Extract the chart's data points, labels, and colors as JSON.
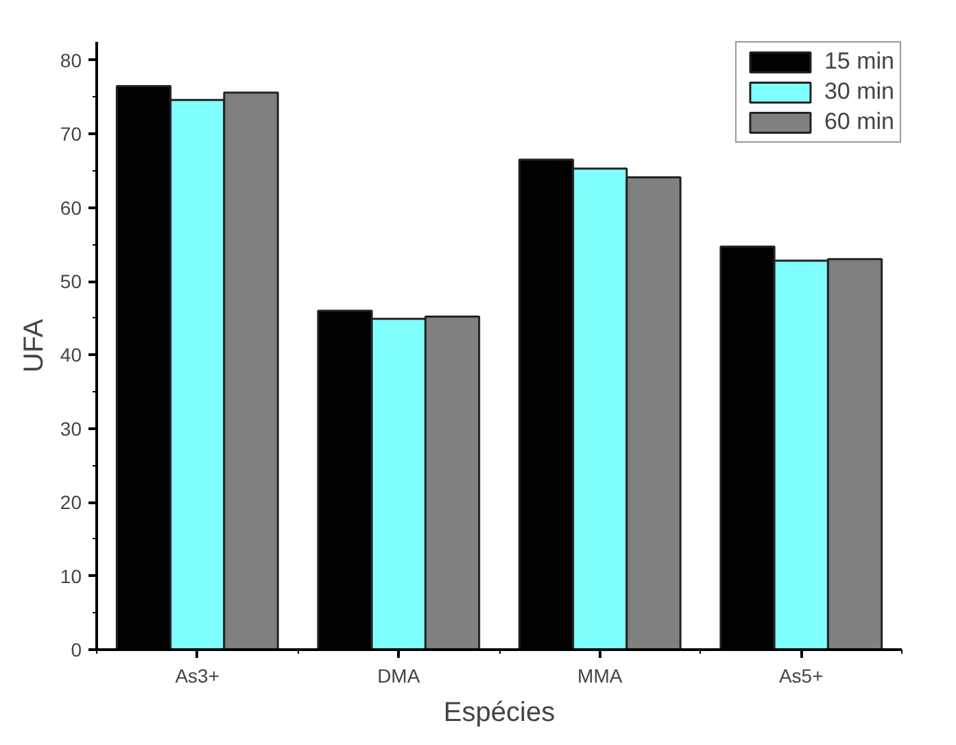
{
  "chart_data": {
    "type": "bar",
    "xlabel": "Espécies",
    "ylabel": "UFA",
    "categories": [
      "As3+",
      "DMA",
      "MMA",
      "As5+"
    ],
    "series": [
      {
        "name": "15 min",
        "color": "#000000",
        "values": [
          76.5,
          46.0,
          66.5,
          54.7
        ]
      },
      {
        "name": "30 min",
        "color": "#80ffff",
        "values": [
          74.6,
          44.9,
          65.3,
          52.8
        ]
      },
      {
        "name": "60 min",
        "color": "#808080",
        "values": [
          75.6,
          45.2,
          64.1,
          53.0
        ]
      }
    ],
    "ylim": [
      0,
      82.5
    ],
    "yticks": [
      0,
      10,
      20,
      30,
      40,
      50,
      60,
      70,
      80
    ],
    "grid": false,
    "legend": "top right"
  }
}
